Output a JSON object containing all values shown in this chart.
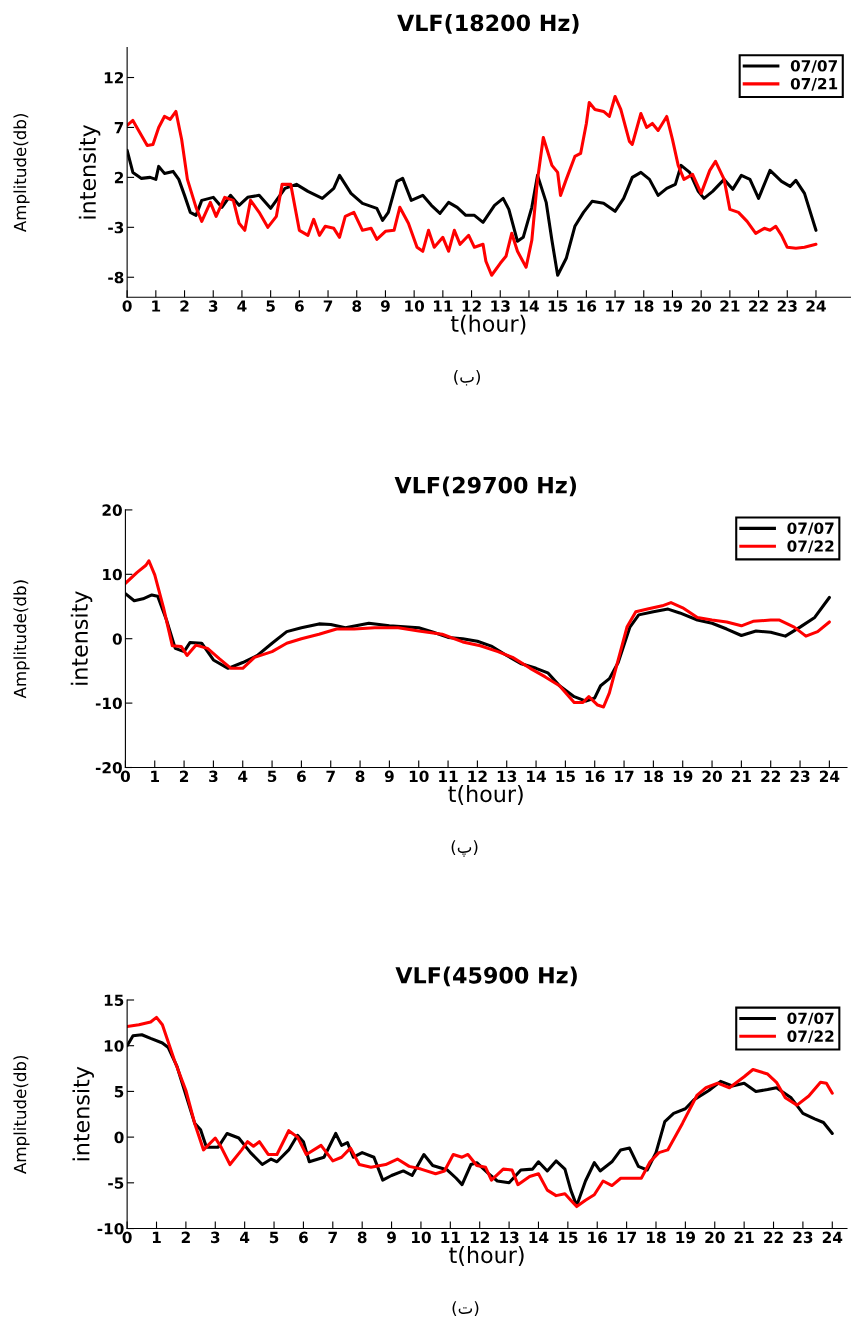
{
  "chart_data": [
    {
      "type": "line",
      "title": "VLF(18200 Hz)",
      "xlabel": "t(hour)",
      "ylabel": "intensity",
      "annotations": [
        "Amplitude(db)",
        "(ب)"
      ],
      "xlim": [
        0,
        25.2
      ],
      "xticks": [
        0,
        1,
        2,
        3,
        4,
        5,
        6,
        7,
        8,
        9,
        10,
        11,
        12,
        13,
        14,
        15,
        16,
        17,
        18,
        19,
        20,
        21,
        22,
        23,
        24
      ],
      "ylim": [
        -10,
        15
      ],
      "yticks": [
        -8,
        -3,
        2,
        7,
        12
      ],
      "grid": false,
      "legend": "top right",
      "marker": "none",
      "line_style": "solid",
      "series": [
        {
          "name": "07/07",
          "color": "#000000",
          "x": [
            0,
            0.2,
            0.5,
            0.8,
            1.0,
            1.1,
            1.3,
            1.6,
            1.8,
            2.0,
            2.2,
            2.4,
            2.6,
            3.0,
            3.3,
            3.6,
            3.9,
            4.2,
            4.6,
            5.0,
            5.5,
            5.9,
            6.3,
            6.8,
            7.2,
            7.4,
            7.8,
            8.2,
            8.7,
            8.9,
            9.1,
            9.4,
            9.6,
            9.9,
            10.3,
            10.6,
            10.9,
            11.2,
            11.5,
            11.8,
            12.1,
            12.4,
            12.8,
            13.1,
            13.3,
            13.6,
            13.8,
            14.1,
            14.3,
            14.6,
            14.8,
            15.0,
            15.3,
            15.6,
            15.9,
            16.2,
            16.6,
            17.0,
            17.3,
            17.6,
            17.9,
            18.2,
            18.5,
            18.8,
            19.1,
            19.3,
            19.6,
            19.9,
            20.1,
            20.4,
            20.8,
            21.1,
            21.4,
            21.7,
            22.0,
            22.4,
            22.8,
            23.1,
            23.3,
            23.6,
            24.0
          ],
          "values": [
            4.7,
            2.5,
            1.9,
            2.0,
            1.8,
            3.1,
            2.4,
            2.6,
            1.8,
            0.2,
            -1.5,
            -1.8,
            -0.3,
            0.0,
            -1.0,
            0.2,
            -0.8,
            0,
            0.2,
            -1.1,
            0.9,
            1.3,
            0.6,
            -0.1,
            0.9,
            2.2,
            0.4,
            -0.6,
            -1.1,
            -2.3,
            -1.5,
            1.6,
            1.9,
            -0.3,
            0.2,
            -0.8,
            -1.6,
            -0.5,
            -1.0,
            -1.8,
            -1.8,
            -2.5,
            -0.8,
            -0.1,
            -1.2,
            -4.4,
            -4.0,
            -1.0,
            2.2,
            -0.5,
            -4.3,
            -7.8,
            -6.1,
            -2.9,
            -1.5,
            -0.4,
            -0.6,
            -1.4,
            -0.1,
            2.0,
            2.5,
            1.8,
            0.2,
            0.9,
            1.3,
            3.2,
            2.5,
            0.6,
            -0.1,
            0.6,
            1.8,
            0.8,
            2.2,
            1.8,
            -0.1,
            2.7,
            1.6,
            1.1,
            1.7,
            0.4,
            -3.3
          ]
        },
        {
          "name": "07/21",
          "color": "#ff0000",
          "x": [
            0,
            0.2,
            0.4,
            0.7,
            0.9,
            1.1,
            1.3,
            1.5,
            1.7,
            1.9,
            2.1,
            2.4,
            2.6,
            2.9,
            3.1,
            3.4,
            3.7,
            3.9,
            4.1,
            4.3,
            4.6,
            4.9,
            5.2,
            5.4,
            5.7,
            6.0,
            6.3,
            6.5,
            6.7,
            6.9,
            7.2,
            7.4,
            7.6,
            7.9,
            8.2,
            8.5,
            8.7,
            9.0,
            9.3,
            9.5,
            9.8,
            10.1,
            10.3,
            10.5,
            10.7,
            11.0,
            11.2,
            11.4,
            11.6,
            11.9,
            12.1,
            12.4,
            12.5,
            12.7,
            13.0,
            13.2,
            13.4,
            13.6,
            13.9,
            14.1,
            14.3,
            14.5,
            14.8,
            15.0,
            15.1,
            15.3,
            15.6,
            15.8,
            16.0,
            16.1,
            16.3,
            16.6,
            16.8,
            17.0,
            17.2,
            17.5,
            17.6,
            17.9,
            18.1,
            18.3,
            18.5,
            18.8,
            19.0,
            19.2,
            19.4,
            19.7,
            20.0,
            20.3,
            20.5,
            20.8,
            21.0,
            21.3,
            21.6,
            21.9,
            22.2,
            22.4,
            22.6,
            22.8,
            23.0,
            23.3,
            23.6,
            24.0
          ],
          "values": [
            7.2,
            7.7,
            6.7,
            5.2,
            5.3,
            7.0,
            8.1,
            7.8,
            8.6,
            5.8,
            1.8,
            -1.0,
            -2.4,
            -0.5,
            -1.9,
            0.0,
            -0.3,
            -2.6,
            -3.3,
            -0.3,
            -1.5,
            -3.0,
            -1.9,
            1.3,
            1.3,
            -3.3,
            -3.8,
            -2.2,
            -3.8,
            -2.9,
            -3.1,
            -4.0,
            -1.9,
            -1.5,
            -3.3,
            -3.1,
            -4.2,
            -3.4,
            -3.3,
            -1.0,
            -2.6,
            -5.0,
            -5.4,
            -3.3,
            -5.0,
            -4.0,
            -5.4,
            -3.3,
            -4.7,
            -3.8,
            -5.0,
            -4.7,
            -6.4,
            -7.8,
            -6.6,
            -5.9,
            -3.6,
            -5.4,
            -7.0,
            -4.3,
            1.8,
            6.0,
            3.2,
            2.5,
            0.2,
            1.8,
            4.1,
            4.4,
            7.4,
            9.5,
            8.8,
            8.6,
            8.1,
            10.1,
            8.8,
            5.6,
            5.3,
            8.4,
            7.0,
            7.4,
            6.7,
            8.1,
            5.8,
            3.2,
            1.8,
            2.3,
            0.4,
            2.7,
            3.6,
            1.8,
            -1.2,
            -1.5,
            -2.4,
            -3.6,
            -3.1,
            -3.3,
            -2.9,
            -3.8,
            -5.0,
            -5.1,
            -5.0,
            -4.7
          ]
        }
      ]
    },
    {
      "type": "line",
      "title": "VLF(29700 Hz)",
      "xlabel": "t(hour)",
      "ylabel": "intensity",
      "annotations": [
        "Amplitude(db)",
        "(پ)"
      ],
      "xlim": [
        0,
        24.6
      ],
      "xticks": [
        0,
        1,
        2,
        3,
        4,
        5,
        6,
        7,
        8,
        9,
        10,
        11,
        12,
        13,
        14,
        15,
        16,
        17,
        18,
        19,
        20,
        21,
        22,
        23,
        24
      ],
      "ylim": [
        -20,
        20
      ],
      "yticks": [
        -20,
        -10,
        0,
        10,
        20
      ],
      "grid": false,
      "legend": "top right",
      "marker": "none",
      "line_style": "solid",
      "series": [
        {
          "name": "07/07",
          "color": "#000000",
          "x": [
            0,
            0.3,
            0.6,
            0.9,
            1.1,
            1.4,
            1.7,
            2.0,
            2.2,
            2.6,
            3.0,
            3.5,
            4.0,
            4.5,
            5.0,
            5.5,
            6.0,
            6.6,
            7.0,
            7.5,
            8.3,
            9.0,
            10.0,
            10.5,
            11.0,
            11.5,
            12.0,
            12.5,
            13.0,
            13.5,
            14.0,
            14.4,
            14.8,
            15.3,
            15.7,
            16.0,
            16.2,
            16.5,
            16.8,
            17.2,
            17.5,
            18.0,
            18.5,
            18.9,
            19.5,
            20.0,
            20.5,
            21.0,
            21.5,
            22.0,
            22.5,
            23.0,
            23.5,
            24.0
          ],
          "values": [
            7.0,
            5.9,
            6.2,
            6.8,
            6.6,
            2.9,
            -1.5,
            -2.0,
            -0.6,
            -0.7,
            -3.3,
            -4.6,
            -3.7,
            -2.6,
            -0.7,
            1.1,
            1.7,
            2.3,
            2.2,
            1.7,
            2.4,
            2.0,
            1.7,
            1.0,
            0.2,
            0,
            -0.4,
            -1.2,
            -2.6,
            -3.9,
            -4.6,
            -5.3,
            -7.3,
            -9.0,
            -9.7,
            -9.2,
            -7.3,
            -6.2,
            -3.7,
            1.8,
            3.7,
            4.2,
            4.6,
            4.0,
            2.9,
            2.4,
            1.5,
            0.5,
            1.2,
            1.0,
            0.4,
            1.8,
            3.3,
            6.4
          ]
        },
        {
          "name": "07/22",
          "color": "#ff0000",
          "x": [
            0,
            0.4,
            0.7,
            0.8,
            1.0,
            1.3,
            1.6,
            1.9,
            2.1,
            2.4,
            2.8,
            3.2,
            3.6,
            4.0,
            4.4,
            5.0,
            5.5,
            6.0,
            6.6,
            7.2,
            7.8,
            8.5,
            9.3,
            10.0,
            10.8,
            11.5,
            12.1,
            12.7,
            13.2,
            13.8,
            14.3,
            14.8,
            15.3,
            15.6,
            15.8,
            16.1,
            16.3,
            16.5,
            16.8,
            17.1,
            17.4,
            17.8,
            18.3,
            18.6,
            19.0,
            19.5,
            20.0,
            20.5,
            21.0,
            21.4,
            22.0,
            22.3,
            22.8,
            23.2,
            23.6,
            24.0
          ],
          "values": [
            8.6,
            10.3,
            11.4,
            12.1,
            9.9,
            4.8,
            -1.1,
            -1.2,
            -2.6,
            -1.0,
            -1.5,
            -3.1,
            -4.6,
            -4.6,
            -2.9,
            -2.0,
            -0.7,
            0,
            0.7,
            1.5,
            1.5,
            1.7,
            1.7,
            1.2,
            0.7,
            -0.5,
            -1.1,
            -2.0,
            -2.9,
            -4.6,
            -5.9,
            -7.3,
            -9.9,
            -9.9,
            -9.0,
            -10.3,
            -10.6,
            -8.4,
            -3.3,
            1.8,
            4.2,
            4.6,
            5.1,
            5.6,
            4.8,
            3.3,
            2.9,
            2.6,
            2.0,
            2.7,
            2.9,
            2.9,
            1.8,
            0.4,
            1.1,
            2.6
          ]
        }
      ]
    },
    {
      "type": "line",
      "title": "VLF(45900 Hz)",
      "xlabel": "t(hour)",
      "ylabel": "intensity",
      "annotations": [
        "Amplitude(db)",
        "(ت)"
      ],
      "xlim": [
        0,
        24.5
      ],
      "xticks": [
        0,
        1,
        2,
        3,
        4,
        5,
        6,
        7,
        8,
        9,
        10,
        11,
        12,
        13,
        14,
        15,
        16,
        17,
        18,
        19,
        20,
        21,
        22,
        23,
        24
      ],
      "ylim": [
        -10,
        15
      ],
      "yticks": [
        -10,
        -5,
        0,
        5,
        10,
        15
      ],
      "grid": false,
      "legend": "top right",
      "marker": "none",
      "line_style": "solid",
      "series": [
        {
          "name": "07/07",
          "color": "#000000",
          "x": [
            0,
            0.2,
            0.5,
            0.8,
            1.2,
            1.4,
            1.7,
            2.0,
            2.3,
            2.5,
            2.7,
            3.1,
            3.4,
            3.8,
            4.2,
            4.6,
            4.9,
            5.1,
            5.5,
            5.8,
            6.0,
            6.2,
            6.7,
            7.1,
            7.3,
            7.5,
            7.7,
            8.0,
            8.4,
            8.7,
            9.0,
            9.4,
            9.7,
            10.1,
            10.4,
            10.9,
            11.2,
            11.4,
            11.7,
            11.9,
            12.3,
            12.6,
            13.0,
            13.4,
            13.8,
            14.0,
            14.3,
            14.6,
            14.9,
            15.1,
            15.3,
            15.6,
            15.9,
            16.1,
            16.5,
            16.8,
            17.1,
            17.4,
            17.7,
            18.0,
            18.3,
            18.6,
            19.0,
            19.3,
            19.8,
            20.2,
            20.6,
            21.0,
            21.4,
            21.8,
            22.1,
            22.6,
            23.0,
            23.4,
            23.7,
            24.0
          ],
          "values": [
            10.0,
            11.1,
            11.2,
            10.8,
            10.3,
            9.8,
            7.7,
            4.6,
            1.5,
            0.8,
            -1.1,
            -1.1,
            0.4,
            -0.1,
            -1.7,
            -3.0,
            -2.4,
            -2.7,
            -1.4,
            0.2,
            -0.5,
            -2.7,
            -2.2,
            0.4,
            -0.9,
            -0.6,
            -2.2,
            -1.7,
            -2.2,
            -4.7,
            -4.2,
            -3.7,
            -4.2,
            -1.9,
            -3.1,
            -3.6,
            -4.5,
            -5.2,
            -3.0,
            -2.8,
            -4.0,
            -4.8,
            -5.0,
            -3.6,
            -3.5,
            -2.7,
            -3.7,
            -2.6,
            -3.5,
            -5.8,
            -7.5,
            -4.8,
            -2.8,
            -3.7,
            -2.7,
            -1.4,
            -1.2,
            -3.2,
            -3.6,
            -1.7,
            1.7,
            2.6,
            3.1,
            4.1,
            5.1,
            6.1,
            5.6,
            5.9,
            5.0,
            5.2,
            5.4,
            4.3,
            2.6,
            2.0,
            1.6,
            0.4
          ]
        },
        {
          "name": "07/22",
          "color": "#ff0000",
          "x": [
            0,
            0.4,
            0.8,
            1.0,
            1.2,
            1.6,
            2.0,
            2.3,
            2.6,
            3.0,
            3.2,
            3.5,
            3.9,
            4.1,
            4.3,
            4.5,
            4.8,
            5.1,
            5.5,
            5.8,
            6.1,
            6.6,
            7.0,
            7.3,
            7.6,
            7.9,
            8.3,
            8.8,
            9.2,
            9.6,
            10.0,
            10.5,
            10.8,
            11.1,
            11.4,
            11.6,
            11.9,
            12.2,
            12.4,
            12.8,
            13.1,
            13.3,
            13.7,
            14.0,
            14.3,
            14.6,
            14.9,
            15.1,
            15.3,
            15.6,
            15.9,
            16.2,
            16.5,
            16.8,
            17.2,
            17.5,
            17.8,
            18.1,
            18.4,
            18.9,
            19.4,
            19.7,
            20.1,
            20.5,
            21.0,
            21.3,
            21.8,
            22.1,
            22.4,
            22.8,
            23.2,
            23.6,
            23.8,
            24.0
          ],
          "values": [
            12.1,
            12.3,
            12.6,
            13.1,
            12.3,
            8.5,
            5.1,
            1.5,
            -1.4,
            -0.1,
            -1.1,
            -3.0,
            -1.4,
            -0.5,
            -1.0,
            -0.5,
            -1.9,
            -1.9,
            0.7,
            0,
            -1.9,
            -0.9,
            -2.6,
            -2.2,
            -1.2,
            -3.0,
            -3.3,
            -3.0,
            -2.4,
            -3.2,
            -3.5,
            -4.0,
            -3.7,
            -1.9,
            -2.2,
            -1.9,
            -3.1,
            -3.3,
            -4.7,
            -3.5,
            -3.6,
            -5.2,
            -4.3,
            -4.0,
            -5.8,
            -6.4,
            -6.2,
            -6.9,
            -7.6,
            -6.9,
            -6.3,
            -4.8,
            -5.3,
            -4.5,
            -4.5,
            -4.5,
            -2.7,
            -1.7,
            -1.4,
            1.5,
            4.6,
            5.4,
            5.9,
            5.4,
            6.6,
            7.4,
            6.9,
            6.0,
            4.3,
            3.5,
            4.5,
            6.0,
            5.9,
            4.8
          ]
        }
      ]
    }
  ]
}
